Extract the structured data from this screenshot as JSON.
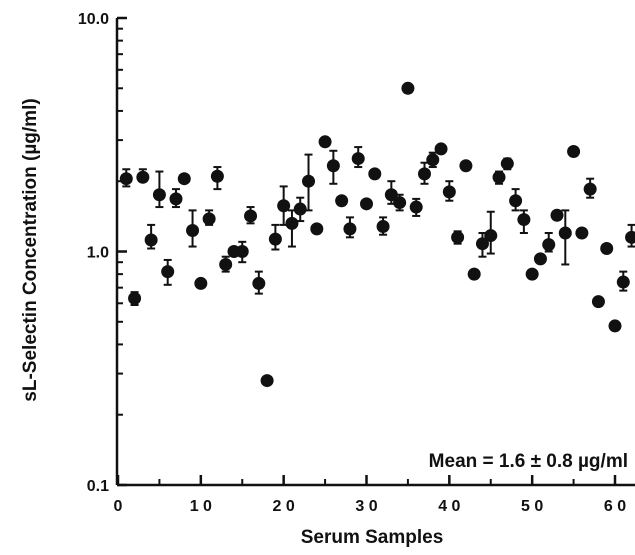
{
  "chart_data": {
    "type": "scatter",
    "xlabel": "Serum Samples",
    "ylabel": "sL-Selectin Concentration (µg/ml)",
    "annotation": "Mean = 1.6 ± 0.8 µg/ml",
    "xlim": [
      0,
      62
    ],
    "ylim": [
      0.1,
      10.0
    ],
    "y_scale": "log",
    "x_ticks": [
      0,
      10,
      20,
      30,
      40,
      50,
      60
    ],
    "x_tick_labels": [
      "0",
      "1 0",
      "2 0",
      "3 0",
      "4 0",
      "5 0",
      "6 0"
    ],
    "y_ticks": [
      0.1,
      1.0,
      10.0
    ],
    "y_tick_labels": [
      "0.1",
      "1.0",
      "10.0"
    ],
    "grid": false,
    "series": [
      {
        "points": [
          {
            "x": 1,
            "y": 2.05,
            "err_lo": 1.9,
            "err_hi": 2.25
          },
          {
            "x": 2,
            "y": 0.63,
            "err_lo": 0.59,
            "err_hi": 0.67
          },
          {
            "x": 3,
            "y": 2.08,
            "err_lo": 2.02,
            "err_hi": 2.25
          },
          {
            "x": 4,
            "y": 1.12,
            "err_lo": 1.03,
            "err_hi": 1.3
          },
          {
            "x": 5,
            "y": 1.75,
            "err_lo": 1.55,
            "err_hi": 2.2
          },
          {
            "x": 6,
            "y": 0.82,
            "err_lo": 0.72,
            "err_hi": 0.92
          },
          {
            "x": 7,
            "y": 1.68,
            "err_lo": 1.55,
            "err_hi": 1.85
          },
          {
            "x": 8,
            "y": 2.05
          },
          {
            "x": 9,
            "y": 1.23,
            "err_lo": 1.05,
            "err_hi": 1.5
          },
          {
            "x": 10,
            "y": 0.73
          },
          {
            "x": 11,
            "y": 1.38,
            "err_lo": 1.3,
            "err_hi": 1.5
          },
          {
            "x": 12,
            "y": 2.1,
            "err_lo": 1.85,
            "err_hi": 2.3
          },
          {
            "x": 13,
            "y": 0.88,
            "err_lo": 0.82,
            "err_hi": 0.95
          },
          {
            "x": 14,
            "y": 1.0
          },
          {
            "x": 15,
            "y": 1.0,
            "err_lo": 0.9,
            "err_hi": 1.1
          },
          {
            "x": 16,
            "y": 1.42,
            "err_lo": 1.32,
            "err_hi": 1.55
          },
          {
            "x": 17,
            "y": 0.73,
            "err_lo": 0.66,
            "err_hi": 0.82
          },
          {
            "x": 18,
            "y": 0.28
          },
          {
            "x": 19,
            "y": 1.13,
            "err_lo": 1.02,
            "err_hi": 1.3
          },
          {
            "x": 20,
            "y": 1.57,
            "err_lo": 1.3,
            "err_hi": 1.9
          },
          {
            "x": 21,
            "y": 1.32,
            "err_lo": 1.05,
            "err_hi": 1.5
          },
          {
            "x": 22,
            "y": 1.52,
            "err_lo": 1.35,
            "err_hi": 1.7
          },
          {
            "x": 23,
            "y": 2.0,
            "err_lo": 1.5,
            "err_hi": 2.6
          },
          {
            "x": 24,
            "y": 1.25
          },
          {
            "x": 25,
            "y": 2.95
          },
          {
            "x": 26,
            "y": 2.33,
            "err_lo": 1.95,
            "err_hi": 2.7
          },
          {
            "x": 27,
            "y": 1.65
          },
          {
            "x": 28,
            "y": 1.25,
            "err_lo": 1.15,
            "err_hi": 1.4
          },
          {
            "x": 29,
            "y": 2.5,
            "err_lo": 2.3,
            "err_hi": 2.8
          },
          {
            "x": 30,
            "y": 1.6
          },
          {
            "x": 31,
            "y": 2.15
          },
          {
            "x": 32,
            "y": 1.28,
            "err_lo": 1.18,
            "err_hi": 1.4
          },
          {
            "x": 33,
            "y": 1.75,
            "err_lo": 1.6,
            "err_hi": 2.0
          },
          {
            "x": 34,
            "y": 1.62,
            "err_lo": 1.5,
            "err_hi": 1.75
          },
          {
            "x": 35,
            "y": 5.0
          },
          {
            "x": 36,
            "y": 1.55,
            "err_lo": 1.42,
            "err_hi": 1.68
          },
          {
            "x": 37,
            "y": 2.15,
            "err_lo": 1.95,
            "err_hi": 2.4
          },
          {
            "x": 38,
            "y": 2.47,
            "err_lo": 2.3,
            "err_hi": 2.65
          },
          {
            "x": 39,
            "y": 2.75
          },
          {
            "x": 40,
            "y": 1.8,
            "err_lo": 1.65,
            "err_hi": 2.0
          },
          {
            "x": 41,
            "y": 1.15,
            "err_lo": 1.08,
            "err_hi": 1.22
          },
          {
            "x": 42,
            "y": 2.33
          },
          {
            "x": 43,
            "y": 0.8
          },
          {
            "x": 44,
            "y": 1.08,
            "err_lo": 0.95,
            "err_hi": 1.2
          },
          {
            "x": 45,
            "y": 1.17,
            "err_lo": 0.98,
            "err_hi": 1.48
          },
          {
            "x": 46,
            "y": 2.08,
            "err_lo": 1.95,
            "err_hi": 2.2
          },
          {
            "x": 47,
            "y": 2.38,
            "err_lo": 2.25,
            "err_hi": 2.5
          },
          {
            "x": 48,
            "y": 1.65,
            "err_lo": 1.5,
            "err_hi": 1.85
          },
          {
            "x": 49,
            "y": 1.37,
            "err_lo": 1.2,
            "err_hi": 1.5
          },
          {
            "x": 50,
            "y": 0.8
          },
          {
            "x": 51,
            "y": 0.93
          },
          {
            "x": 52,
            "y": 1.07,
            "err_lo": 1.0,
            "err_hi": 1.2
          },
          {
            "x": 53,
            "y": 1.43
          },
          {
            "x": 54,
            "y": 1.2,
            "err_lo": 0.88,
            "err_hi": 1.5
          },
          {
            "x": 55,
            "y": 2.68
          },
          {
            "x": 56,
            "y": 1.2
          },
          {
            "x": 57,
            "y": 1.85,
            "err_lo": 1.7,
            "err_hi": 2.05
          },
          {
            "x": 58,
            "y": 0.61
          },
          {
            "x": 59,
            "y": 1.03
          },
          {
            "x": 60,
            "y": 0.48
          },
          {
            "x": 61,
            "y": 0.74,
            "err_lo": 0.68,
            "err_hi": 0.82
          },
          {
            "x": 62,
            "y": 1.15,
            "err_lo": 1.05,
            "err_hi": 1.3
          }
        ]
      }
    ]
  }
}
